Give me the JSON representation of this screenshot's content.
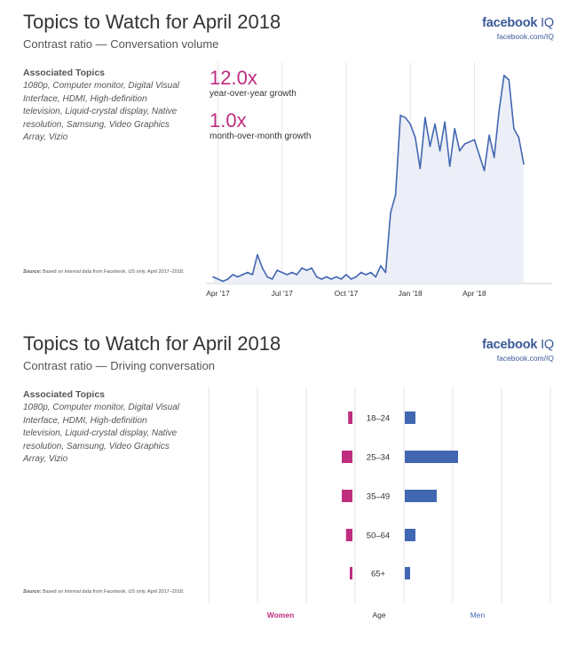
{
  "colors": {
    "magenta": "#bf2d7f",
    "blue": "#4267b2",
    "brand": "#3b5998"
  },
  "brand": {
    "name": "facebook",
    "suffix": "IQ",
    "url": "facebook.com/IQ"
  },
  "panel1": {
    "title": "Topics to Watch for April 2018",
    "subtitle": "Contrast ratio — Conversation volume",
    "topics_heading": "Associated Topics",
    "topics_list": "1080p, Computer monitor, Digital Visual Interface, HDMI, High-definition television, Liquid-crystal display, Native resolution, Samsung, Video Graphics Array, Vizio",
    "source_label": "Source:",
    "source_text": "Based on internal data from Facebook, US only. April 2017–2018.",
    "stat1_value": "12.0x",
    "stat1_label": "year-over-year growth",
    "stat2_value": "1.0x",
    "stat2_label": "month-over-month growth"
  },
  "panel2": {
    "title": "Topics to Watch for April 2018",
    "subtitle": "Contrast ratio — Driving conversation",
    "topics_heading": "Associated Topics",
    "topics_list": "1080p, Computer monitor, Digital Visual Interface, HDMI, High-definition television, Liquid-crystal display, Native resolution, Samsung, Video Graphics Array, Vizio",
    "source_label": "Source:",
    "source_text": "Based on internal data from Facebook, US only. April 2017–2018."
  },
  "chart_data": [
    {
      "type": "area",
      "title": "Contrast ratio — Conversation volume",
      "x_ticks": [
        "Apr '17",
        "Jul '17",
        "Oct '17",
        "Jan '18",
        "Apr '18"
      ],
      "x_tick_index": [
        1,
        14,
        27,
        40,
        53
      ],
      "ylim": [
        0,
        100
      ],
      "series": [
        {
          "name": "Conversation volume",
          "values": [
            3,
            2,
            1,
            2,
            4,
            3,
            4,
            5,
            4,
            13,
            7,
            3,
            2,
            6,
            5,
            4,
            5,
            4,
            7,
            6,
            7,
            3,
            2,
            3,
            2,
            3,
            2,
            4,
            2,
            3,
            5,
            4,
            5,
            3,
            8,
            5,
            32,
            40,
            76,
            75,
            72,
            66,
            52,
            75,
            62,
            72,
            60,
            73,
            53,
            70,
            60,
            63,
            64,
            65,
            58,
            51,
            67,
            57,
            78,
            94,
            92,
            70,
            66,
            54
          ]
        }
      ],
      "grid": "vertical"
    },
    {
      "type": "bar",
      "title": "Contrast ratio — Driving conversation",
      "categories": [
        "18–24",
        "25–34",
        "35–49",
        "50–64",
        "65+"
      ],
      "series": [
        {
          "name": "Women",
          "values": [
            0.8,
            2.0,
            2.0,
            1.2,
            0.5
          ]
        },
        {
          "name": "Men",
          "values": [
            2.0,
            10.0,
            6.0,
            2.0,
            1.0
          ]
        }
      ],
      "center_label": "Age",
      "orientation": "horizontal-diverging"
    }
  ]
}
